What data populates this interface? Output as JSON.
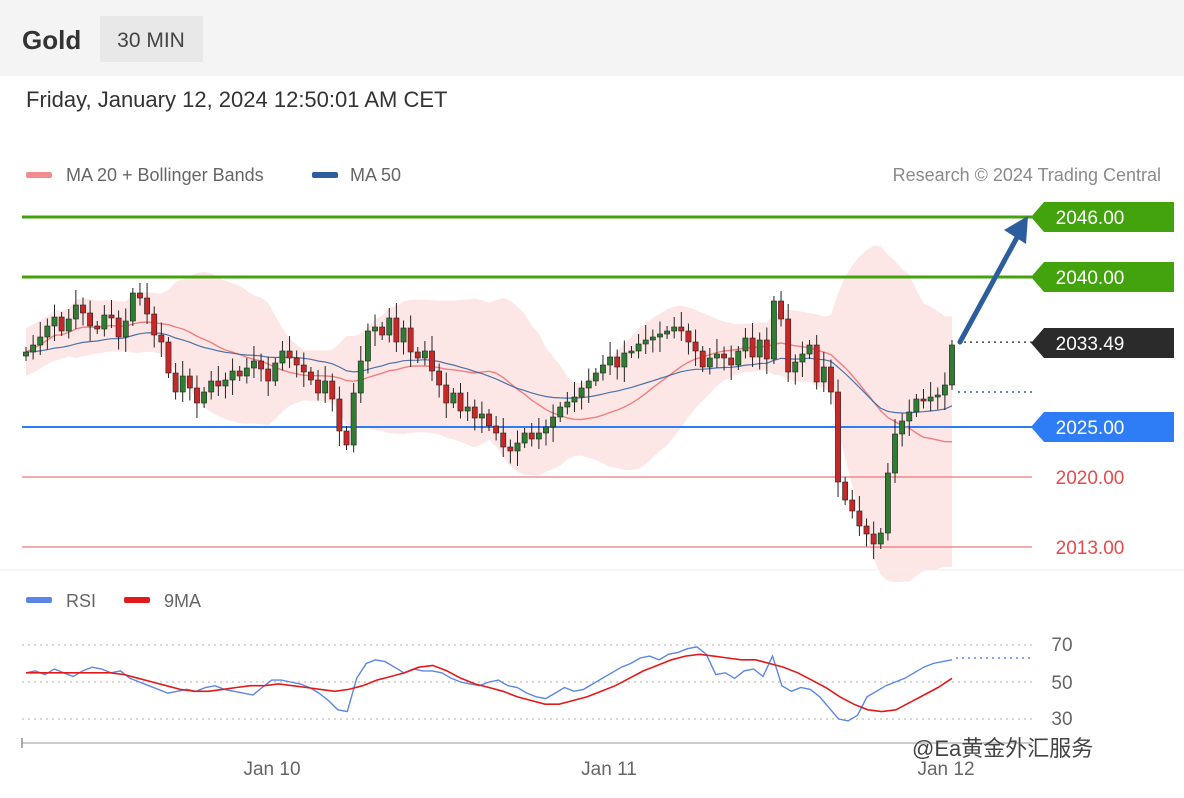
{
  "header": {
    "symbol": "Gold",
    "interval": "30 MIN",
    "datetime": "Friday, January 12, 2024 12:50:01 AM CET"
  },
  "legend": {
    "bollinger": "MA 20 + Bollinger Bands",
    "ma50": "MA 50",
    "copyright": "Research © 2024 Trading Central"
  },
  "levels": {
    "r2": "2046.00",
    "r1": "2040.00",
    "current": "2033.49",
    "pivot": "2025.00",
    "s1": "2020.00",
    "s2": "2013.00"
  },
  "rsi_legend": {
    "rsi": "RSI",
    "ma9": "9MA"
  },
  "rsi_ticks": {
    "t70": "70",
    "t50": "50",
    "t30": "30"
  },
  "x_labels": {
    "d1": "Jan 10",
    "d2": "Jan 11",
    "d3": "Jan 12"
  },
  "watermark": "@Ea黄金外汇服务",
  "colors": {
    "resistance": "#43a30c",
    "pivot": "#2f7df6",
    "support": "#e84a4a",
    "current_tag": "#2b2b2b",
    "ma20_bands": "#f27f7f",
    "band_fill": "#fde2e2",
    "ma50": "#2c5d9c",
    "rsi": "#5b86e5",
    "rsi_ma": "#e31a1a",
    "candle_up": "#2e7d32",
    "candle_down": "#c62828"
  },
  "chart_data": [
    {
      "type": "candlestick",
      "title": "Gold",
      "interval": "30 MIN",
      "x_labels": [
        "Jan 10",
        "Jan 11",
        "Jan 12"
      ],
      "levels": [
        {
          "label": "2046.00",
          "value": 2046.0,
          "kind": "resistance"
        },
        {
          "label": "2040.00",
          "value": 2040.0,
          "kind": "resistance"
        },
        {
          "label": "2033.49",
          "value": 2033.49,
          "kind": "last price"
        },
        {
          "label": "2025.00",
          "value": 2025.0,
          "kind": "pivot"
        },
        {
          "label": "2020.00",
          "value": 2020.0,
          "kind": "support"
        },
        {
          "label": "2013.00",
          "value": 2013.0,
          "kind": "support"
        }
      ],
      "candle_closes": [
        2032.5,
        2033.2,
        2034.0,
        2035.1,
        2036.0,
        2034.6,
        2035.8,
        2037.2,
        2036.4,
        2035.1,
        2034.8,
        2036.2,
        2035.9,
        2034.0,
        2035.6,
        2038.4,
        2037.9,
        2036.3,
        2034.2,
        2033.5,
        2030.4,
        2028.5,
        2030.1,
        2028.9,
        2027.4,
        2028.5,
        2029.6,
        2029.1,
        2029.7,
        2030.6,
        2030.1,
        2030.9,
        2031.6,
        2030.8,
        2029.6,
        2031.4,
        2032.6,
        2031.9,
        2031.2,
        2030.5,
        2029.7,
        2028.4,
        2029.6,
        2027.8,
        2024.6,
        2023.2,
        2028.4,
        2031.6,
        2034.6,
        2035.0,
        2034.2,
        2035.9,
        2033.5,
        2034.9,
        2032.5,
        2031.9,
        2032.6,
        2030.6,
        2029.2,
        2027.4,
        2028.4,
        2026.6,
        2027.0,
        2025.9,
        2026.3,
        2025.1,
        2024.4,
        2023.0,
        2022.6,
        2023.4,
        2024.4,
        2023.8,
        2024.4,
        2025.0,
        2026.0,
        2027.0,
        2027.5,
        2028.0,
        2028.9,
        2029.6,
        2030.4,
        2031.2,
        2032.0,
        2031.0,
        2032.4,
        2032.6,
        2033.3,
        2033.7,
        2034.0,
        2034.3,
        2034.6,
        2035.0,
        2034.6,
        2033.5,
        2032.6,
        2031.0,
        2031.9,
        2032.3,
        2031.9,
        2031.2,
        2032.6,
        2033.9,
        2032.0,
        2033.7,
        2031.8,
        2037.6,
        2035.8,
        2030.5,
        2031.5,
        2032.3,
        2033.2,
        2029.5,
        2031.0,
        2028.5,
        2019.5,
        2017.7,
        2016.6,
        2015.1,
        2014.3,
        2013.3,
        2014.4,
        2020.4,
        2024.3,
        2025.6,
        2026.5,
        2027.8,
        2027.6,
        2028.0,
        2028.2,
        2029.2,
        2033.2
      ],
      "series": [
        {
          "name": "MA 20 + Bollinger Bands",
          "start": 2033.5,
          "end": 2025.0
        },
        {
          "name": "MA 50",
          "start": 2030.3,
          "end": 2028.5
        }
      ]
    },
    {
      "type": "line",
      "title": "",
      "ylim": [
        25,
        72
      ],
      "y_ticks": [
        70,
        50,
        30
      ],
      "series": [
        {
          "name": "RSI",
          "values": [
            55,
            56,
            54,
            57,
            55,
            53,
            56,
            58,
            57,
            55,
            56,
            52,
            50,
            48,
            46,
            44,
            45,
            46,
            45,
            47,
            48,
            46,
            45,
            44,
            43,
            47,
            51,
            51,
            50,
            49,
            47,
            44,
            40,
            35,
            34,
            52,
            60,
            62,
            61,
            58,
            55,
            57,
            56,
            56,
            55,
            52,
            50,
            49,
            48,
            50,
            51,
            48,
            47,
            44,
            42,
            41,
            44,
            47,
            45,
            46,
            49,
            52,
            55,
            58,
            60,
            63,
            64,
            62,
            65,
            66,
            68,
            69,
            65,
            54,
            55,
            52,
            56,
            57,
            53,
            64,
            48,
            45,
            47,
            46,
            42,
            36,
            30,
            29,
            32,
            42,
            45,
            48,
            50,
            52,
            55,
            58,
            60,
            61,
            62
          ]
        },
        {
          "name": "9MA",
          "values": [
            55,
            55,
            55,
            55,
            55,
            55,
            55,
            54,
            52,
            50,
            48,
            46,
            45,
            45,
            46,
            47,
            48,
            48,
            49,
            48,
            47,
            46,
            45,
            46,
            48,
            51,
            53,
            55,
            58,
            59,
            56,
            52,
            49,
            47,
            45,
            42,
            40,
            38,
            38,
            40,
            42,
            45,
            48,
            52,
            56,
            59,
            62,
            64,
            65,
            64,
            63,
            62,
            62,
            60,
            58,
            55,
            51,
            47,
            42,
            38,
            35,
            34,
            35,
            39,
            43,
            47,
            52
          ]
        }
      ]
    }
  ]
}
